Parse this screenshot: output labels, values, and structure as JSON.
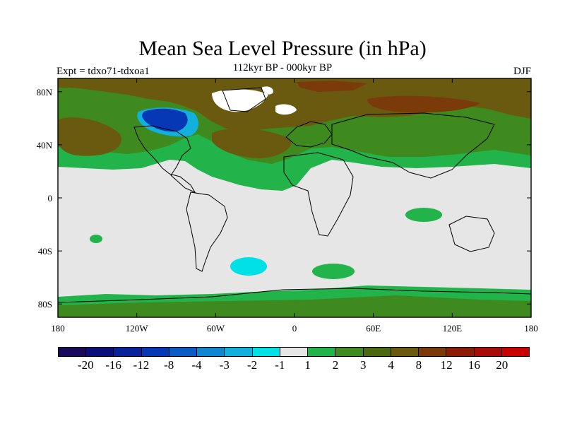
{
  "title": "Mean Sea Level Pressure (in hPa)",
  "subtitle_left": "Expt = tdxo71-tdxoa1",
  "subtitle_center": "112kyr BP - 000kyr BP",
  "subtitle_right": "DJF",
  "axes": {
    "x_ticks": [
      "180",
      "120W",
      "60W",
      "0",
      "60E",
      "120E",
      "180"
    ],
    "y_ticks": [
      "80N",
      "40N",
      "0",
      "40S",
      "80S"
    ]
  },
  "colorbar": {
    "labels": [
      "-20",
      "-16",
      "-12",
      "-8",
      "-4",
      "-3",
      "-2",
      "-1",
      "1",
      "2",
      "3",
      "4",
      "8",
      "12",
      "16",
      "20"
    ],
    "colors": [
      "#1a0a5c",
      "#0b0f7a",
      "#08239a",
      "#0637b5",
      "#0a5cc4",
      "#0f86cf",
      "#11b0dd",
      "#00e1e6",
      "#e6e6e6",
      "#22b34a",
      "#3f8a1e",
      "#4b6a10",
      "#6a5a10",
      "#7a3a0a",
      "#8a1c08",
      "#a60c0a",
      "#c80000"
    ]
  },
  "colors": {
    "neutral": "#e6e6e6",
    "green": "#22b34a",
    "dark_green": "#3f8a1e",
    "olive": "#4b6a10",
    "brown": "#6a5a10",
    "dark_brown": "#7a3a0a",
    "cyan": "#00e1e6",
    "blue": "#0637b5",
    "white": "#ffffff"
  }
}
